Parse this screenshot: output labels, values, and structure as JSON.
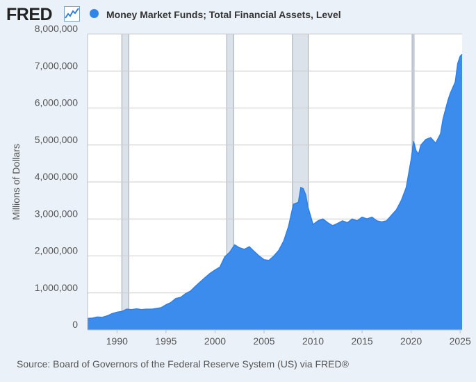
{
  "header": {
    "logo_text": "FRED",
    "series_title": "Money Market Funds; Total Financial Assets, Level"
  },
  "source_note": "Source: Board of Governors of the Federal Reserve System (US) via FRED®",
  "colors": {
    "background": "#eaf1f9",
    "series_fill": "#3b8ced",
    "series_line": "#2f80e5",
    "recession": "#dbe2ea",
    "grid": "#cccccc"
  },
  "chart_data": {
    "type": "area",
    "title": "Money Market Funds; Total Financial Assets, Level",
    "ylabel": "Millions of Dollars",
    "xlabel": "",
    "xlim": [
      1987.0,
      2025.2
    ],
    "ylim": [
      0,
      8000000
    ],
    "x_ticks": [
      1990,
      1995,
      2000,
      2005,
      2010,
      2015,
      2020,
      2025
    ],
    "x_tick_labels": [
      "1990",
      "1995",
      "2000",
      "2005",
      "2010",
      "2015",
      "2020",
      "2025"
    ],
    "y_ticks": [
      0,
      1000000,
      2000000,
      3000000,
      4000000,
      5000000,
      6000000,
      7000000,
      8000000
    ],
    "y_tick_labels": [
      "0",
      "1,000,000",
      "2,000,000",
      "3,000,000",
      "4,000,000",
      "5,000,000",
      "6,000,000",
      "7,000,000",
      "8,000,000"
    ],
    "grid": true,
    "recessions": [
      [
        1990.5,
        1991.2
      ],
      [
        2001.2,
        2001.9
      ],
      [
        2007.9,
        2009.5
      ],
      [
        2020.1,
        2020.3
      ]
    ],
    "series": [
      {
        "name": "Money Market Funds; Total Financial Assets, Level",
        "x": [
          1987.0,
          1987.5,
          1988.0,
          1988.5,
          1989.0,
          1989.5,
          1990.0,
          1990.5,
          1991.0,
          1991.5,
          1992.0,
          1992.5,
          1993.0,
          1993.5,
          1994.0,
          1994.5,
          1995.0,
          1995.5,
          1996.0,
          1996.5,
          1997.0,
          1997.5,
          1998.0,
          1998.5,
          1999.0,
          1999.5,
          2000.0,
          2000.5,
          2001.0,
          2001.5,
          2002.0,
          2002.5,
          2003.0,
          2003.5,
          2004.0,
          2004.5,
          2005.0,
          2005.5,
          2006.0,
          2006.5,
          2007.0,
          2007.5,
          2008.0,
          2008.5,
          2008.75,
          2009.0,
          2009.25,
          2009.5,
          2010.0,
          2010.5,
          2011.0,
          2011.5,
          2012.0,
          2012.5,
          2013.0,
          2013.5,
          2014.0,
          2014.5,
          2015.0,
          2015.5,
          2016.0,
          2016.5,
          2017.0,
          2017.5,
          2018.0,
          2018.5,
          2019.0,
          2019.5,
          2020.0,
          2020.25,
          2020.5,
          2020.75,
          2021.0,
          2021.5,
          2022.0,
          2022.5,
          2023.0,
          2023.25,
          2023.5,
          2023.75,
          2024.0,
          2024.25,
          2024.5,
          2024.75,
          2025.0,
          2025.2
        ],
        "values": [
          310000,
          320000,
          350000,
          340000,
          380000,
          440000,
          480000,
          500000,
          560000,
          550000,
          570000,
          550000,
          560000,
          560000,
          580000,
          600000,
          680000,
          740000,
          850000,
          880000,
          980000,
          1050000,
          1180000,
          1300000,
          1420000,
          1530000,
          1620000,
          1700000,
          1980000,
          2100000,
          2300000,
          2220000,
          2180000,
          2250000,
          2120000,
          2000000,
          1900000,
          1880000,
          2000000,
          2150000,
          2400000,
          2800000,
          3400000,
          3450000,
          3850000,
          3820000,
          3650000,
          3300000,
          2850000,
          2950000,
          3000000,
          2900000,
          2820000,
          2880000,
          2950000,
          2900000,
          3000000,
          2950000,
          3050000,
          3000000,
          3050000,
          2950000,
          2920000,
          2950000,
          3100000,
          3250000,
          3500000,
          3850000,
          4600000,
          5100000,
          4850000,
          4750000,
          5000000,
          5150000,
          5200000,
          5050000,
          5300000,
          5700000,
          5950000,
          6200000,
          6400000,
          6550000,
          6700000,
          7200000,
          7400000,
          7450000
        ]
      }
    ]
  }
}
